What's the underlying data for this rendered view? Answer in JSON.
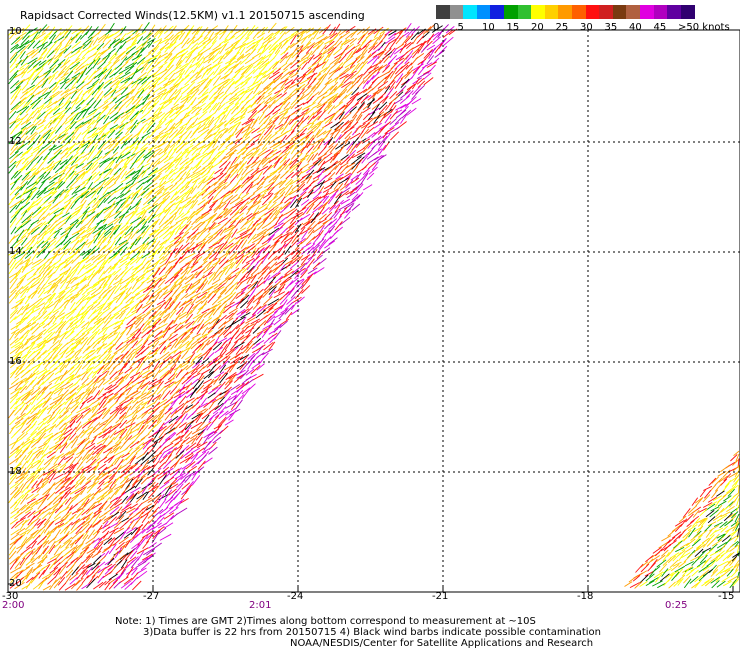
{
  "title": "Rapidsact Corrected Winds(12.5KM) v1.1 20150715 ascending",
  "colorbar": {
    "labels": [
      "0",
      "5",
      "10",
      "15",
      "20",
      "25",
      "30",
      "35",
      "40",
      "45",
      ">50 knots"
    ],
    "colors": [
      "#404040",
      "#909090",
      "#00e5ff",
      "#0090ff",
      "#1020e0",
      "#00a000",
      "#30c030",
      "#ffff00",
      "#ffd000",
      "#ff9a00",
      "#ff6000",
      "#ff1010",
      "#d02020",
      "#7a3a10",
      "#b06040",
      "#e000e0",
      "#b000c0",
      "#6000a0",
      "#300070"
    ]
  },
  "map": {
    "lat_labels": [
      "10",
      "12",
      "14",
      "16",
      "18",
      "20"
    ],
    "lon_labels": [
      "-30",
      "-27",
      "-24",
      "-21",
      "-18",
      "-15"
    ],
    "time_labels": [
      "2:00",
      "2:01",
      "0:25"
    ]
  },
  "notes": [
    "Note: 1) Times are GMT 2)Times along bottom correspond to measurement at ~10S",
    "3)Data buffer is 22 hrs from 20150715 4) Black wind barbs indicate possible contamination",
    "NOAA/NESDIS/Center for Satellite Applications and Research"
  ]
}
